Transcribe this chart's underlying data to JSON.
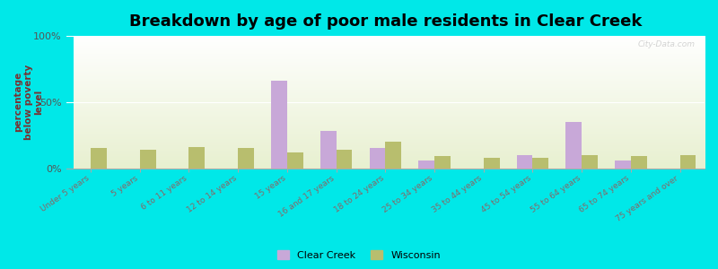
{
  "title": "Breakdown by age of poor male residents in Clear Creek",
  "ylabel": "percentage\nbelow poverty\nlevel",
  "categories": [
    "Under 5 years",
    "5 years",
    "6 to 11 years",
    "12 to 14 years",
    "15 years",
    "16 and 17 years",
    "18 to 24 years",
    "25 to 34 years",
    "35 to 44 years",
    "45 to 54 years",
    "55 to 64 years",
    "65 to 74 years",
    "75 years and over"
  ],
  "clear_creek": [
    0,
    0,
    0,
    0,
    66,
    28,
    15,
    6,
    0,
    10,
    35,
    6,
    0
  ],
  "wisconsin": [
    15,
    14,
    16,
    15,
    12,
    14,
    20,
    9,
    8,
    8,
    10,
    9,
    10
  ],
  "clear_creek_color": "#c8a8d8",
  "wisconsin_color": "#b8be6e",
  "background_color": "#00e8e8",
  "ylim": [
    0,
    100
  ],
  "yticks": [
    0,
    50,
    100
  ],
  "ytick_labels": [
    "0%",
    "50%",
    "100%"
  ],
  "title_fontsize": 13,
  "ylabel_fontsize": 7.5,
  "legend_labels": [
    "Clear Creek",
    "Wisconsin"
  ],
  "watermark": "City-Data.com"
}
